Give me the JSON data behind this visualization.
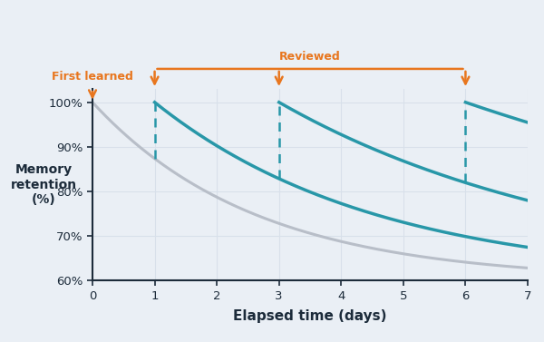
{
  "title": "",
  "xlabel": "Elapsed time (days)",
  "ylabel": "Memory\nretention\n(%)",
  "xlim": [
    0,
    7
  ],
  "ylim": [
    60,
    103
  ],
  "yticks": [
    60,
    70,
    80,
    90,
    100
  ],
  "ytick_labels": [
    "60%",
    "70%",
    "80%",
    "90%",
    "100%"
  ],
  "xticks": [
    0,
    1,
    2,
    3,
    4,
    5,
    6,
    7
  ],
  "bg_color": "#eaeff5",
  "axes_color": "#1c2b3a",
  "grid_color": "#d8e0ea",
  "teal_color": "#2897a8",
  "gray_color": "#b8bec8",
  "dashed_color": "#2897a8",
  "orange_color": "#e8761e",
  "k_gray": 0.38,
  "review_starts": [
    1,
    3,
    6
  ],
  "k_teal": [
    0.28,
    0.2,
    0.12
  ],
  "annotation_first": "First learned",
  "annotation_reviewed": "Reviewed",
  "xlabel_fontsize": 11,
  "ylabel_fontsize": 10,
  "tick_fontsize": 9.5
}
